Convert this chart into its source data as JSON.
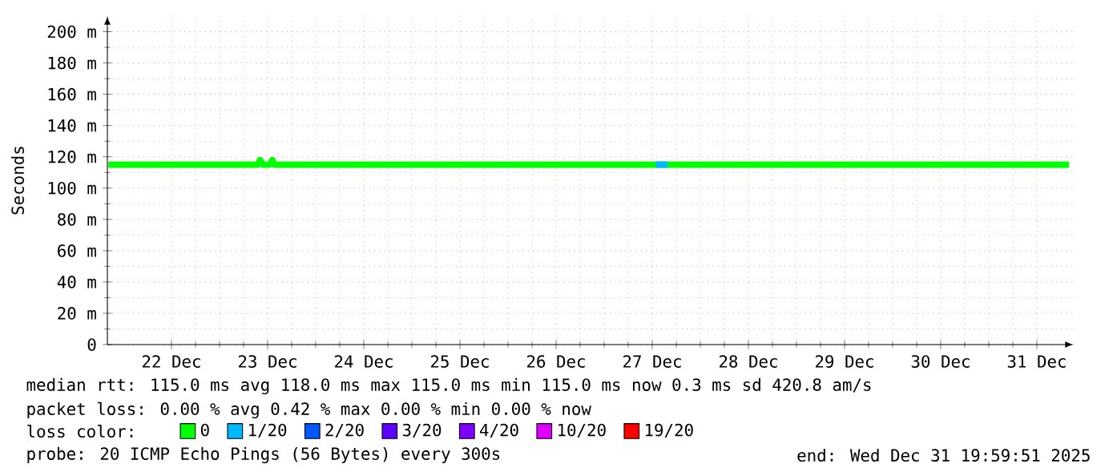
{
  "chart_data": {
    "type": "line",
    "ylabel": "Seconds",
    "legend_title": "loss color:",
    "legend": "bottom",
    "grid": true,
    "marker": "none",
    "line_style": "solid",
    "xlim": [
      "2025-12-21T20:00",
      "2025-12-31T21:12"
    ],
    "ylim": [
      0,
      210
    ],
    "xticks": [
      {
        "value": "2025-12-22T12:00",
        "label": "22 Dec"
      },
      {
        "value": "2025-12-23T12:00",
        "label": "23 Dec"
      },
      {
        "value": "2025-12-24T12:00",
        "label": "24 Dec"
      },
      {
        "value": "2025-12-25T12:00",
        "label": "25 Dec"
      },
      {
        "value": "2025-12-26T12:00",
        "label": "26 Dec"
      },
      {
        "value": "2025-12-27T12:00",
        "label": "27 Dec"
      },
      {
        "value": "2025-12-28T12:00",
        "label": "28 Dec"
      },
      {
        "value": "2025-12-29T12:00",
        "label": "29 Dec"
      },
      {
        "value": "2025-12-30T12:00",
        "label": "30 Dec"
      },
      {
        "value": "2025-12-31T12:00",
        "label": "31 Dec"
      }
    ],
    "yticks": [
      0,
      {
        "value": 20,
        "label": "20 m"
      },
      {
        "value": 40,
        "label": "40 m"
      },
      {
        "value": 60,
        "label": "60 m"
      },
      {
        "value": 80,
        "label": "80 m"
      },
      {
        "value": 100,
        "label": "100 m"
      },
      {
        "value": 120,
        "label": "120 m"
      },
      {
        "value": 140,
        "label": "140 m"
      },
      {
        "value": 160,
        "label": "160 m"
      },
      {
        "value": 180,
        "label": "180 m"
      },
      {
        "value": 200,
        "label": "200 m"
      }
    ],
    "series": [
      {
        "name": "0",
        "color": "#00ff00",
        "x": [
          "2025-12-21T20:15",
          "2025-12-23T09:35",
          "2025-12-23T10:05",
          "2025-12-23T10:50",
          "2025-12-23T12:30",
          "2025-12-23T13:10",
          "2025-12-23T13:40",
          "2025-12-31T20:00"
        ],
        "values": [
          115,
          115,
          118,
          115,
          115,
          118,
          115,
          115
        ]
      },
      {
        "name": "1/20",
        "color": "#00b8ff",
        "x": [
          "2025-12-27T12:50",
          "2025-12-27T14:20",
          "2025-12-27T15:50"
        ],
        "values": [
          115,
          115,
          115
        ]
      },
      {
        "name": "2/20",
        "color": "#0059ff"
      },
      {
        "name": "3/20",
        "color": "#5e00ff"
      },
      {
        "name": "4/20",
        "color": "#7e00ff"
      },
      {
        "name": "10/20",
        "color": "#dd00ff"
      },
      {
        "name": "19/20",
        "color": "#ff0000"
      }
    ],
    "annotations": [
      "median rtt:  115.0 ms avg  118.0 ms max  115.0 ms min  115.0 ms now  0.3 ms sd  420.8  am/s",
      "packet loss: 0.00 % avg  0.42 % max  0.00 % min  0.00 % now",
      "probe:       20 ICMP Echo Pings (56 Bytes) every 300s",
      "end: Wed Dec 31 19:59:51 2025"
    ]
  }
}
